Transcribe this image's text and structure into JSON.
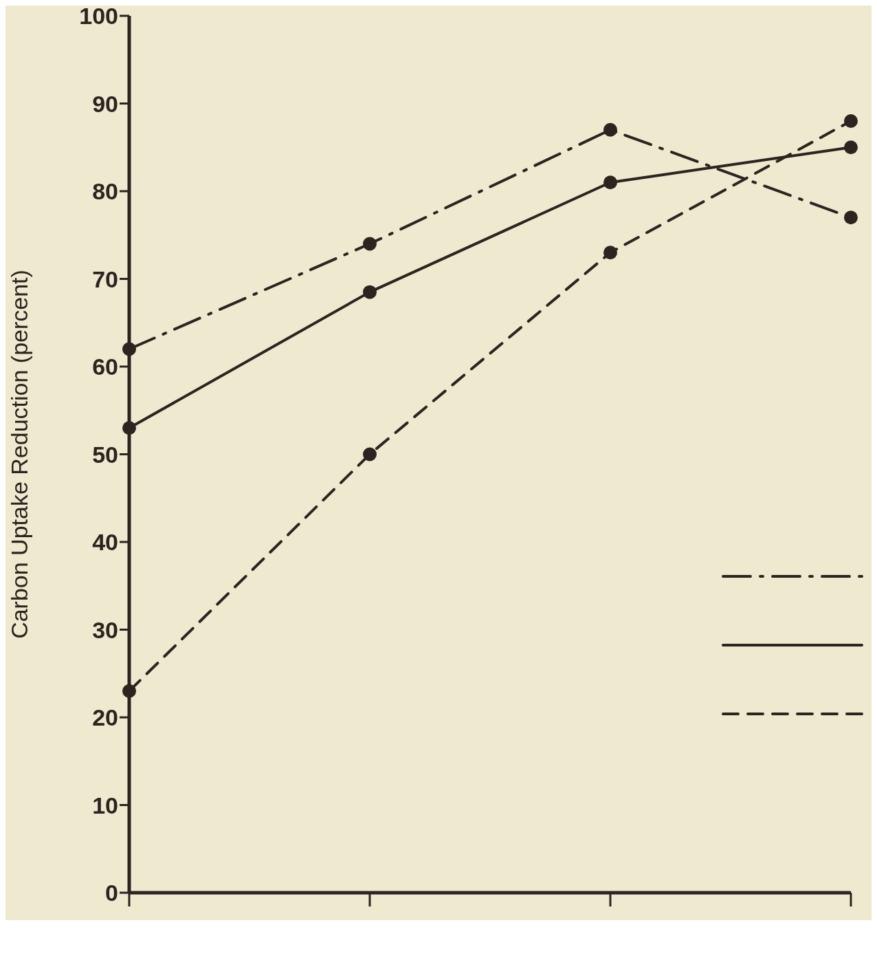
{
  "chart_data": {
    "type": "line",
    "ylabel": "Carbon Uptake Reduction (percent)",
    "categories": [
      null,
      null,
      null,
      null
    ],
    "series": [
      {
        "color": "#2b2420",
        "line_style": "dashdot",
        "values": [
          62,
          74,
          87,
          77
        ]
      },
      {
        "color": "#2b2420",
        "line_style": "solid",
        "values": [
          53,
          68.5,
          81,
          85
        ]
      },
      {
        "color": "#2b2420",
        "line_style": "dashed",
        "values": [
          23,
          50,
          73,
          88
        ]
      }
    ],
    "ylim": [
      0,
      100
    ],
    "yticks": [
      0,
      10,
      20,
      30,
      40,
      50,
      60,
      70,
      80,
      90,
      100
    ],
    "marker": "circle",
    "grid": false
  }
}
